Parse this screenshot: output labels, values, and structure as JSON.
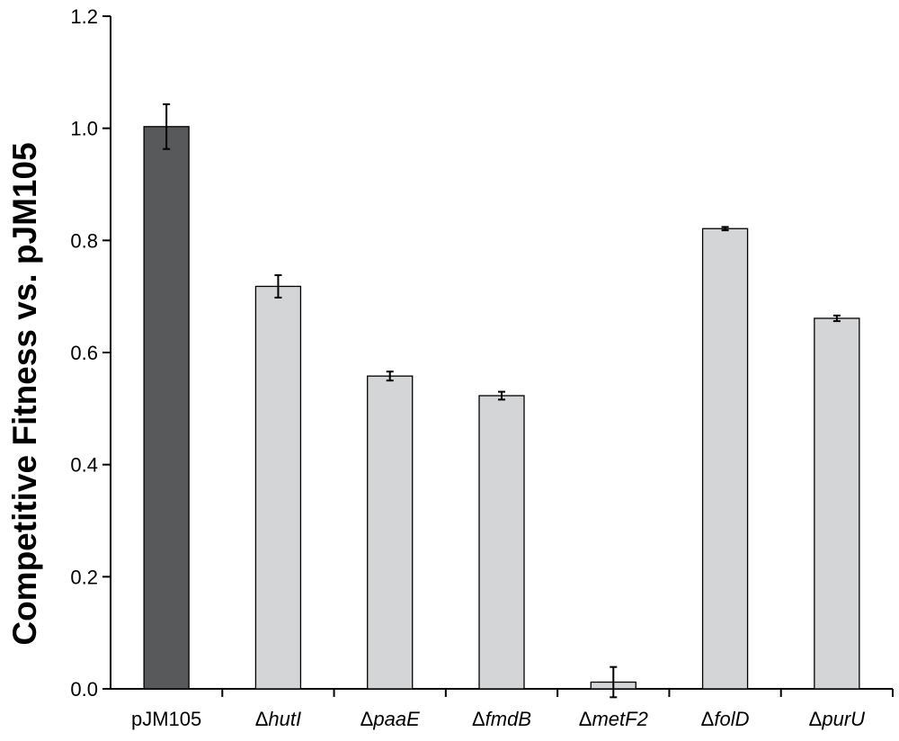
{
  "chart_data": {
    "type": "bar",
    "xlabel": "",
    "ylabel": "Competitive Fitness vs. pJM105",
    "ylim": [
      0,
      1.2
    ],
    "yticks": [
      "0.0",
      "0.2",
      "0.4",
      "0.6",
      "0.8",
      "1.0",
      "1.2"
    ],
    "grid": false,
    "categories": [
      {
        "prefix": "",
        "name": "pJM105"
      },
      {
        "prefix": "Δ",
        "name": "hutI"
      },
      {
        "prefix": "Δ",
        "name": "paaE"
      },
      {
        "prefix": "Δ",
        "name": "fmdB"
      },
      {
        "prefix": "Δ",
        "name": "metF2"
      },
      {
        "prefix": "Δ",
        "name": "folD"
      },
      {
        "prefix": "Δ",
        "name": "purU"
      }
    ],
    "values": [
      1.003,
      0.718,
      0.558,
      0.523,
      0.012,
      0.821,
      0.661
    ],
    "errors": [
      0.04,
      0.02,
      0.008,
      0.007,
      0.027,
      0.003,
      0.005
    ],
    "colors": [
      "#58595b",
      "#d4d5d7",
      "#d4d5d7",
      "#d4d5d7",
      "#d4d5d7",
      "#d4d5d7",
      "#d4d5d7"
    ]
  }
}
